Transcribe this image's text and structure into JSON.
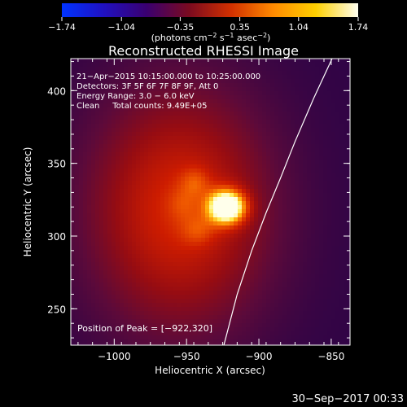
{
  "chart_data": {
    "type": "heatmap",
    "title": "Reconstructed RHESSI Image",
    "xlabel": "Heliocentric X (arcsec)",
    "ylabel": "Heliocentric Y (arcsec)",
    "xlim": [
      -1030,
      -837
    ],
    "ylim": [
      225,
      422
    ],
    "x_ticks": [
      -1000,
      -950,
      -900,
      -850
    ],
    "x_tick_labels": [
      "−1000",
      "−950",
      "−900",
      "−850"
    ],
    "y_ticks": [
      250,
      300,
      350,
      400
    ],
    "y_tick_labels": [
      "250",
      "300",
      "350",
      "400"
    ],
    "colorbar": {
      "min": -1.74,
      "max": 1.74,
      "ticks": [
        -1.74,
        -1.04,
        -0.35,
        0.35,
        1.04,
        1.74
      ],
      "tick_labels": [
        "−1.74",
        "−1.04",
        "−0.35",
        "0.35",
        "1.04",
        "1.74"
      ],
      "units_label": "(photons cm",
      "units_exp1": "−2",
      "units_mid": " s",
      "units_exp2": "−1",
      "units_mid2": " asec",
      "units_exp3": "−2",
      "units_end": ")",
      "colors": [
        "#0033ff",
        "#2010c0",
        "#3a0070",
        "#7a0a20",
        "#d23000",
        "#ff8a00",
        "#ffd000",
        "#fffff0"
      ]
    },
    "info_lines": [
      "21−Apr−2015 10:15:00.000 to 10:25:00.000",
      "Detectors: 3F 5F 6F 7F 8F 9F, Att 0",
      "Energy Range: 3.0 − 6.0 keV",
      "Clean     Total counts: 9.49E+05"
    ],
    "peak_label": "Position of Peak = [−922,320]",
    "peak": [
      -922,
      320
    ],
    "limb_curve": [
      [
        -925,
        222
      ],
      [
        -915,
        260
      ],
      [
        -905,
        290
      ],
      [
        -895,
        316
      ],
      [
        -885,
        340
      ],
      [
        -875,
        365
      ],
      [
        -862,
        395
      ],
      [
        -848,
        425
      ]
    ],
    "sources": [
      {
        "x": -955,
        "y": 318,
        "sx": 44,
        "sy": 58,
        "amp": 0.52
      },
      {
        "x": -922,
        "y": 320,
        "sx": 9,
        "sy": 8,
        "amp": 1.0
      },
      {
        "x": -944,
        "y": 337,
        "sx": 7,
        "sy": 7,
        "amp": 0.18
      },
      {
        "x": -942,
        "y": 304,
        "sx": 8,
        "sy": 7,
        "amp": 0.16
      },
      {
        "x": -952,
        "y": 322,
        "sx": 7,
        "sy": 8,
        "amp": 0.12
      }
    ]
  },
  "footer": {
    "date": "30−Sep−2017 00:33"
  }
}
